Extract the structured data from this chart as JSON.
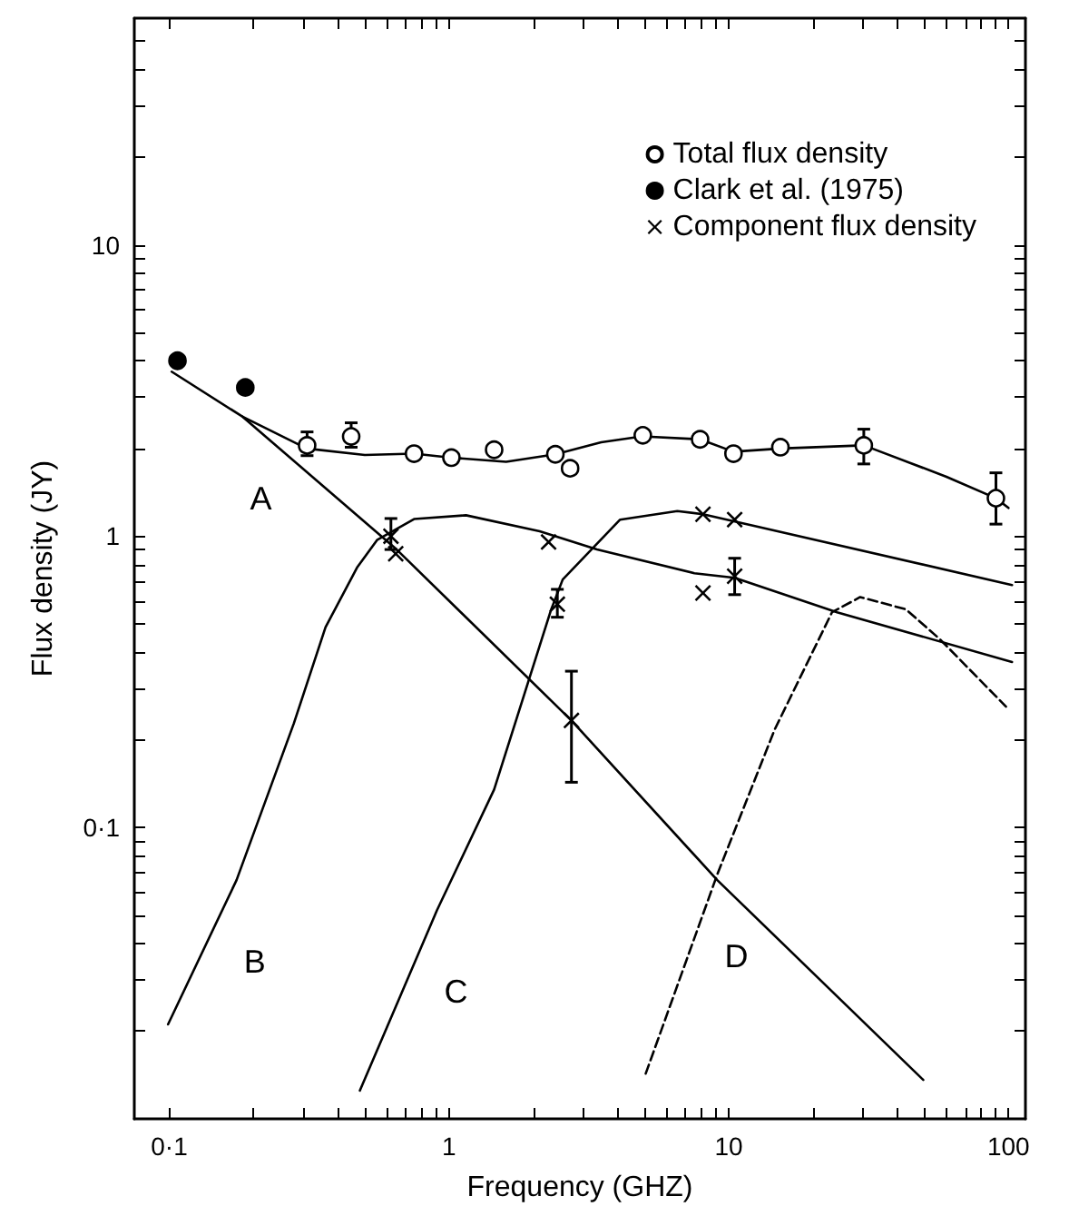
{
  "chart_data": {
    "type": "line",
    "xlabel": "Frequency (GHZ)",
    "ylabel": "Flux density (JY)",
    "log": "xy",
    "xlim": [
      0.075,
      115
    ],
    "ylim": [
      0.01,
      60
    ],
    "xticks": [
      {
        "value": 0.1,
        "label": "0·1"
      },
      {
        "value": 0.2,
        "label": null
      },
      {
        "value": 0.3,
        "label": null
      },
      {
        "value": 0.4,
        "label": null
      },
      {
        "value": 0.5,
        "label": null
      },
      {
        "value": 0.6,
        "label": null
      },
      {
        "value": 0.7,
        "label": null
      },
      {
        "value": 0.8,
        "label": null
      },
      {
        "value": 0.9,
        "label": null
      },
      1,
      {
        "value": 2,
        "label": null
      },
      {
        "value": 3,
        "label": null
      },
      {
        "value": 4,
        "label": null
      },
      {
        "value": 5,
        "label": null
      },
      {
        "value": 6,
        "label": null
      },
      {
        "value": 7,
        "label": null
      },
      {
        "value": 8,
        "label": null
      },
      {
        "value": 9,
        "label": null
      },
      10,
      {
        "value": 20,
        "label": null
      },
      {
        "value": 30,
        "label": null
      },
      {
        "value": 40,
        "label": null
      },
      {
        "value": 50,
        "label": null
      },
      {
        "value": 60,
        "label": null
      },
      {
        "value": 70,
        "label": null
      },
      {
        "value": 80,
        "label": null
      },
      {
        "value": 90,
        "label": null
      },
      100
    ],
    "yticks": [
      {
        "value": 0.02,
        "label": null
      },
      {
        "value": 0.03,
        "label": null
      },
      {
        "value": 0.04,
        "label": null
      },
      {
        "value": 0.05,
        "label": null
      },
      {
        "value": 0.06,
        "label": null
      },
      {
        "value": 0.07,
        "label": null
      },
      {
        "value": 0.08,
        "label": null
      },
      {
        "value": 0.09,
        "label": null
      },
      {
        "value": 0.1,
        "label": "0·1"
      },
      {
        "value": 0.2,
        "label": null
      },
      {
        "value": 0.3,
        "label": null
      },
      {
        "value": 0.4,
        "label": null
      },
      {
        "value": 0.5,
        "label": null
      },
      {
        "value": 0.6,
        "label": null
      },
      {
        "value": 0.7,
        "label": null
      },
      {
        "value": 0.8,
        "label": null
      },
      {
        "value": 0.9,
        "label": null
      },
      1,
      {
        "value": 2,
        "label": null
      },
      {
        "value": 3,
        "label": null
      },
      {
        "value": 4,
        "label": null
      },
      {
        "value": 5,
        "label": null
      },
      {
        "value": 6,
        "label": null
      },
      {
        "value": 7,
        "label": null
      },
      {
        "value": 8,
        "label": null
      },
      {
        "value": 9,
        "label": null
      },
      10,
      {
        "value": 20,
        "label": null
      },
      {
        "value": 30,
        "label": null
      },
      {
        "value": 40,
        "label": null
      },
      {
        "value": 50,
        "label": null
      }
    ],
    "grid": false,
    "legend": "top right",
    "line_style": "solid",
    "series": [
      {
        "name": "Total flux density",
        "type": "scatter",
        "marker": "circle",
        "color": "#ffffff",
        "x": [
          0.311,
          0.447,
          0.75,
          1.02,
          1.45,
          2.4,
          2.71,
          4.93,
          7.9,
          10.4,
          15.3,
          30.4,
          90.2
        ],
        "values": [
          2.05,
          2.2,
          1.92,
          1.86,
          1.98,
          1.91,
          1.71,
          2.22,
          2.15,
          1.92,
          2.02,
          2.05,
          1.35
        ],
        "errors": [
          [
            1.89,
            2.28
          ],
          [
            2.02,
            2.45
          ],
          null,
          null,
          null,
          null,
          null,
          null,
          null,
          null,
          null,
          [
            1.77,
            2.33
          ],
          [
            1.1,
            1.65
          ]
        ]
      },
      {
        "name": "Clark et al. (1975)",
        "type": "scatter",
        "marker": "circle",
        "color": "#000000",
        "x": [
          0.107,
          0.187
        ],
        "values": [
          4.0,
          3.24
        ]
      },
      {
        "name": "Component flux density",
        "type": "scatter",
        "marker": "cross",
        "color": "#000000",
        "x": [
          0.62,
          0.645,
          2.27,
          2.44,
          2.74,
          8.09,
          8.09,
          10.5,
          10.5
        ],
        "values": [
          1.0,
          0.87,
          0.955,
          0.584,
          0.233,
          1.19,
          0.638,
          1.14,
          0.729
        ],
        "errors": [
          [
            0.9,
            1.15
          ],
          null,
          null,
          [
            0.527,
            0.657
          ],
          [
            0.143,
            0.344
          ],
          null,
          null,
          null,
          [
            0.63,
            0.84
          ]
        ]
      },
      {
        "marker": "none",
        "color": "#000000",
        "x": [
          0.183,
          0.31,
          0.5,
          0.75,
          1.02,
          1.6,
          2.4,
          3.5,
          4.9,
          7.9,
          10.4,
          15.3,
          30.4,
          60,
          90.2,
          100
        ],
        "values": [
          2.57,
          2.0,
          1.9,
          1.92,
          1.86,
          1.8,
          1.91,
          2.1,
          2.2,
          2.15,
          1.95,
          2.0,
          2.05,
          1.6,
          1.35,
          1.25
        ]
      },
      {
        "name": "A",
        "marker": "none",
        "color": "#000000",
        "x": [
          0.102,
          0.183,
          0.65,
          2.74,
          9.1,
          49.6
        ],
        "values": [
          3.67,
          2.57,
          0.9,
          0.233,
          0.066,
          0.0136
        ]
      },
      {
        "name": "B",
        "marker": "none",
        "color": "#000000",
        "x": [
          0.099,
          0.174,
          0.279,
          0.362,
          0.469,
          0.553,
          0.75,
          1.15,
          2.11,
          3.38,
          7.54,
          10.5,
          24.4,
          103
        ],
        "values": [
          0.0211,
          0.066,
          0.228,
          0.487,
          0.78,
          0.97,
          1.145,
          1.18,
          1.04,
          0.9,
          0.746,
          0.72,
          0.548,
          0.37
        ]
      },
      {
        "name": "C",
        "marker": "none",
        "color": "#000000",
        "x": [
          0.48,
          0.906,
          1.45,
          2.32,
          2.55,
          4.09,
          6.55,
          8.09,
          12.1,
          103
        ],
        "values": [
          0.0125,
          0.052,
          0.135,
          0.561,
          0.71,
          1.14,
          1.22,
          1.19,
          1.09,
          0.68
        ]
      },
      {
        "name": "D",
        "marker": "none",
        "color": "#000000",
        "line_style": "dashed",
        "x": [
          5.05,
          9.1,
          14.6,
          23.4,
          29.5,
          43,
          57,
          98
        ],
        "values": [
          0.0143,
          0.069,
          0.217,
          0.548,
          0.618,
          0.561,
          0.442,
          0.26
        ]
      }
    ]
  }
}
